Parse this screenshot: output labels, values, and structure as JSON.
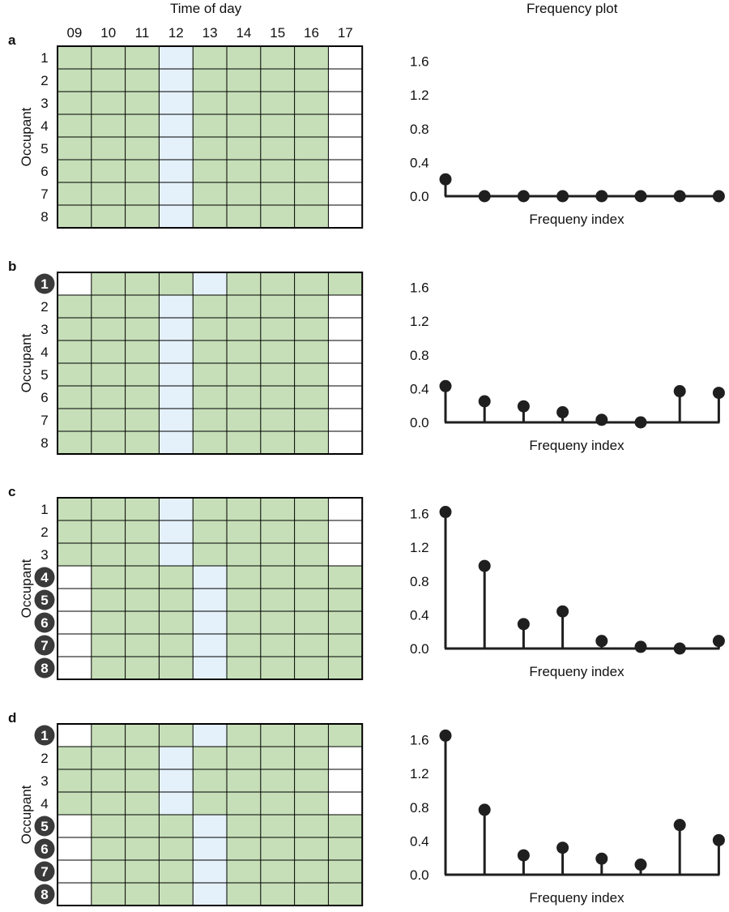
{
  "headers": {
    "left": "Time of day",
    "right": "Frequency plot"
  },
  "hours": [
    "09",
    "10",
    "11",
    "12",
    "13",
    "14",
    "15",
    "16",
    "17"
  ],
  "ylabel": "Occupant",
  "stem_xlabel": "Frequeny index",
  "stem_yticks": [
    "0.0",
    "0.4",
    "0.8",
    "1.2",
    "1.6"
  ],
  "colors": {
    "present": "#c6dfb8",
    "break": "#e4f1fa",
    "absent": "#ffffff",
    "grid": "#000000",
    "badge": "#3a3a3a",
    "stem": "#1f1f1f"
  },
  "panels": [
    {
      "letter": "a",
      "rows": [
        {
          "label": "1",
          "highlight": false,
          "cells": "PPPBPPPPA"
        },
        {
          "label": "2",
          "highlight": false,
          "cells": "PPPBPPPPA"
        },
        {
          "label": "3",
          "highlight": false,
          "cells": "PPPBPPPPA"
        },
        {
          "label": "4",
          "highlight": false,
          "cells": "PPPBPPPPA"
        },
        {
          "label": "5",
          "highlight": false,
          "cells": "PPPBPPPPA"
        },
        {
          "label": "6",
          "highlight": false,
          "cells": "PPPBPPPPA"
        },
        {
          "label": "7",
          "highlight": false,
          "cells": "PPPBPPPPA"
        },
        {
          "label": "8",
          "highlight": false,
          "cells": "PPPBPPPPA"
        }
      ],
      "chart_data": {
        "type": "stem",
        "xlabel": "Frequeny index",
        "ylim": [
          0,
          1.6
        ],
        "values": [
          0.2,
          0.0,
          0.0,
          0.0,
          0.0,
          0.0,
          0.0,
          0.0
        ]
      }
    },
    {
      "letter": "b",
      "rows": [
        {
          "label": "1",
          "highlight": true,
          "cells": "APPPBPPPP"
        },
        {
          "label": "2",
          "highlight": false,
          "cells": "PPPBPPPPA"
        },
        {
          "label": "3",
          "highlight": false,
          "cells": "PPPBPPPPA"
        },
        {
          "label": "4",
          "highlight": false,
          "cells": "PPPBPPPPA"
        },
        {
          "label": "5",
          "highlight": false,
          "cells": "PPPBPPPPA"
        },
        {
          "label": "6",
          "highlight": false,
          "cells": "PPPBPPPPA"
        },
        {
          "label": "7",
          "highlight": false,
          "cells": "PPPBPPPPA"
        },
        {
          "label": "8",
          "highlight": false,
          "cells": "PPPBPPPPA"
        }
      ],
      "chart_data": {
        "type": "stem",
        "xlabel": "Frequeny index",
        "ylim": [
          0,
          1.6
        ],
        "values": [
          0.43,
          0.25,
          0.19,
          0.12,
          0.03,
          0.0,
          0.37,
          0.35
        ]
      }
    },
    {
      "letter": "c",
      "rows": [
        {
          "label": "1",
          "highlight": false,
          "cells": "PPPBPPPPA"
        },
        {
          "label": "2",
          "highlight": false,
          "cells": "PPPBPPPPA"
        },
        {
          "label": "3",
          "highlight": false,
          "cells": "PPPBPPPPA"
        },
        {
          "label": "4",
          "highlight": true,
          "cells": "APPPBPPPP"
        },
        {
          "label": "5",
          "highlight": true,
          "cells": "APPPBPPPP"
        },
        {
          "label": "6",
          "highlight": true,
          "cells": "APPPBPPPP"
        },
        {
          "label": "7",
          "highlight": true,
          "cells": "APPPBPPPP"
        },
        {
          "label": "8",
          "highlight": true,
          "cells": "APPPBPPPP"
        }
      ],
      "chart_data": {
        "type": "stem",
        "xlabel": "Frequeny index",
        "ylim": [
          0,
          1.6
        ],
        "values": [
          1.62,
          0.98,
          0.29,
          0.44,
          0.09,
          0.02,
          0.0,
          0.09
        ]
      }
    },
    {
      "letter": "d",
      "rows": [
        {
          "label": "1",
          "highlight": true,
          "cells": "APPPBPPPP"
        },
        {
          "label": "2",
          "highlight": false,
          "cells": "PPPBPPPPA"
        },
        {
          "label": "3",
          "highlight": false,
          "cells": "PPPBPPPPA"
        },
        {
          "label": "4",
          "highlight": false,
          "cells": "PPPBPPPPA"
        },
        {
          "label": "5",
          "highlight": true,
          "cells": "APPPBPPPP"
        },
        {
          "label": "6",
          "highlight": true,
          "cells": "APPPBPPPP"
        },
        {
          "label": "7",
          "highlight": true,
          "cells": "APPPBPPPP"
        },
        {
          "label": "8",
          "highlight": true,
          "cells": "APPPBPPPP"
        }
      ],
      "chart_data": {
        "type": "stem",
        "xlabel": "Frequeny index",
        "ylim": [
          0,
          1.6
        ],
        "values": [
          1.65,
          0.77,
          0.23,
          0.32,
          0.19,
          0.12,
          0.59,
          0.41
        ]
      }
    }
  ]
}
